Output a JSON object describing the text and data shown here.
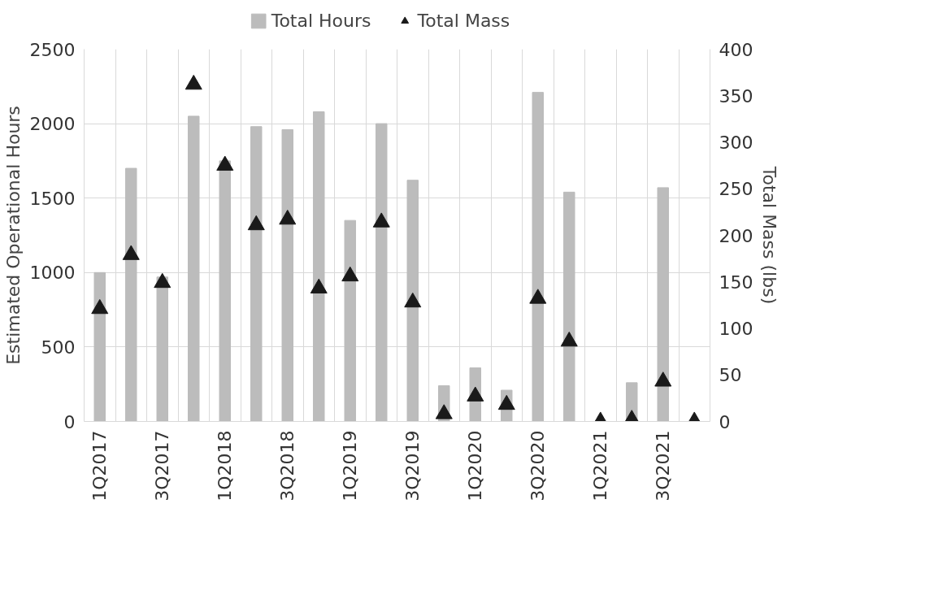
{
  "chart_data": {
    "type": "bar",
    "ylabel": "Estimated Operational Hours",
    "y2label": "Total Mass (lbs)",
    "categories": [
      "1Q2017",
      null,
      "3Q2017",
      null,
      "1Q2018",
      null,
      "3Q2018",
      null,
      "1Q2019",
      null,
      "3Q2019",
      null,
      "1Q2020",
      null,
      "3Q2020",
      null,
      "1Q2021",
      null,
      "3Q2021",
      null
    ],
    "series": [
      {
        "name": "Total Hours",
        "color": "#bcbcbc",
        "values": [
          1000,
          1700,
          970,
          2050,
          1750,
          1980,
          1960,
          2080,
          1350,
          2000,
          1620,
          240,
          360,
          210,
          2210,
          1540,
          0,
          260,
          1570,
          0
        ]
      },
      {
        "name": "Total Mass",
        "type": "scatter",
        "axis": "y2",
        "marker": "triangle",
        "color": "#1a1a1a",
        "values": [
          121,
          179,
          149,
          362,
          275,
          211,
          217,
          143,
          156,
          214,
          128,
          8,
          27,
          18,
          132,
          86,
          0,
          2,
          43,
          0
        ]
      }
    ],
    "ylim": [
      0,
      2500
    ],
    "yticks": [
      0,
      500,
      1000,
      1500,
      2000,
      2500
    ],
    "y2lim": [
      0,
      400
    ],
    "y2ticks": [
      0,
      50,
      100,
      150,
      200,
      250,
      300,
      350,
      400
    ],
    "grid": true,
    "legend": "top"
  }
}
